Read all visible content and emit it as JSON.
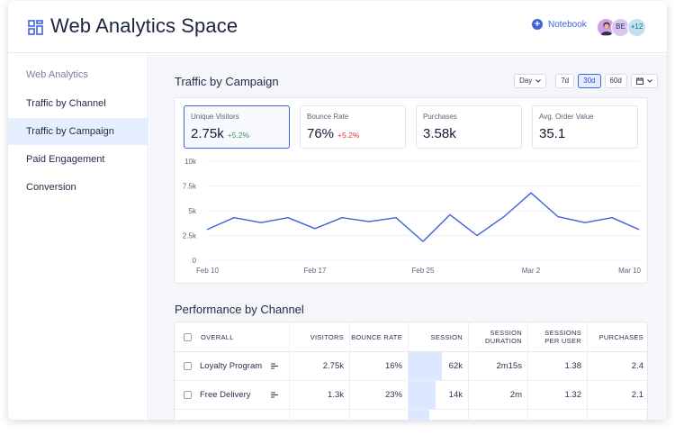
{
  "app": {
    "title": "Web Analytics Space",
    "notebook_label": "Notebook",
    "avatars": [
      "BE",
      "+12"
    ]
  },
  "sidebar": {
    "heading": "Web Analytics",
    "items": [
      {
        "label": "Traffic by Channel",
        "active": false
      },
      {
        "label": "Traffic by Campaign",
        "active": true
      },
      {
        "label": "Paid Engagement",
        "active": false
      },
      {
        "label": "Conversion",
        "active": false
      }
    ]
  },
  "traffic": {
    "title": "Traffic by Campaign",
    "controls": {
      "interval": "Day",
      "ranges": [
        "7d",
        "30d",
        "60d"
      ],
      "selected_range": "30d"
    },
    "kpis": [
      {
        "label": "Unique Visitors",
        "value": "2.75k",
        "delta": "+5.2%",
        "delta_tone": "up",
        "selected": true
      },
      {
        "label": "Bounce Rate",
        "value": "76%",
        "delta": "+5.2%",
        "delta_tone": "down",
        "selected": false
      },
      {
        "label": "Purchases",
        "value": "3.58k",
        "delta": "",
        "selected": false
      },
      {
        "label": "Avg. Order Value",
        "value": "35.1",
        "delta": "",
        "selected": false
      }
    ]
  },
  "chart_data": {
    "type": "line",
    "title": "",
    "xlabel": "",
    "ylabel": "",
    "y_ticks": [
      "10k",
      "7.5k",
      "5k",
      "2.5k",
      "0"
    ],
    "y_tick_values": [
      10000,
      7500,
      5000,
      2500,
      0
    ],
    "ylim": [
      0,
      10000
    ],
    "x_ticks": [
      "Feb 10",
      "Feb 17",
      "Feb 25",
      "Mar 2",
      "Mar 10"
    ],
    "x_tick_index": [
      0,
      4,
      8,
      12,
      16
    ],
    "grid": true,
    "line_color": "#3f63d8",
    "series": [
      {
        "values": [
          3100,
          4300,
          3800,
          4300,
          3200,
          4300,
          3900,
          4300,
          1900,
          4600,
          2500,
          4400,
          6800,
          4400,
          3800,
          4300,
          3100
        ]
      }
    ]
  },
  "performance": {
    "title": "Performance by Channel",
    "columns": [
      "OVERALL",
      "VISITORS",
      "BOUNCE RATE",
      "SESSION",
      "SESSION DURATION",
      "SESSIONS PER USER",
      "PURCHASES"
    ],
    "rows": [
      {
        "name": "Loyalty Program",
        "visitors": "2.75k",
        "bounce_rate": "16%",
        "session": "62k",
        "session_duration": "2m15s",
        "sessions_per_user": "1.38",
        "purchases": "2.4",
        "session_fill": 0.55
      },
      {
        "name": "Free Delivery",
        "visitors": "1.3k",
        "bounce_rate": "23%",
        "session": "14k",
        "session_duration": "2m",
        "sessions_per_user": "1.32",
        "purchases": "2.1",
        "session_fill": 0.45
      },
      {
        "name": "",
        "visitors": "",
        "bounce_rate": "",
        "session": "",
        "session_duration": "",
        "sessions_per_user": "",
        "purchases": "",
        "session_fill": 0.35
      }
    ]
  }
}
